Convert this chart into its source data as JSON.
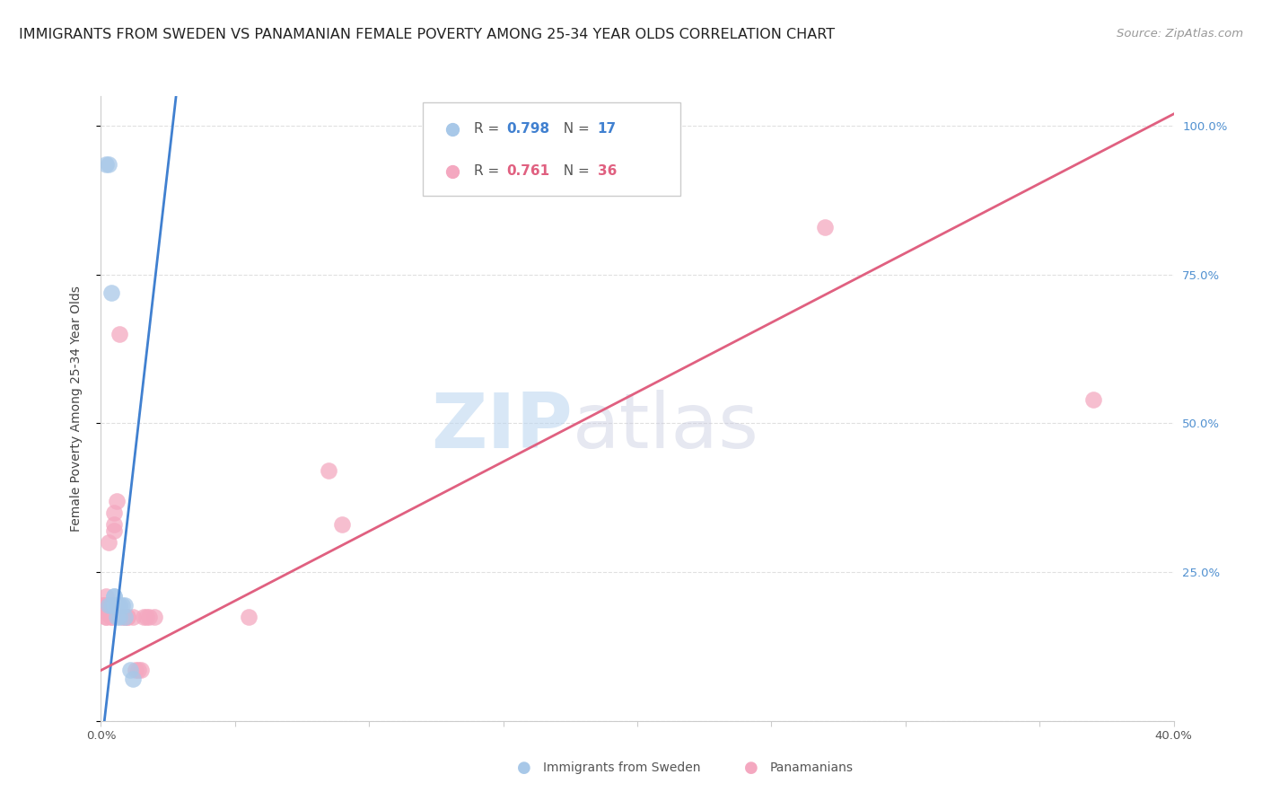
{
  "title": "IMMIGRANTS FROM SWEDEN VS PANAMANIAN FEMALE POVERTY AMONG 25-34 YEAR OLDS CORRELATION CHART",
  "source": "Source: ZipAtlas.com",
  "ylabel": "Female Poverty Among 25-34 Year Olds",
  "watermark_zip": "ZIP",
  "watermark_atlas": "atlas",
  "xmin": 0.0,
  "xmax": 0.4,
  "ymin": 0.0,
  "ymax": 1.05,
  "xticks": [
    0.0,
    0.05,
    0.1,
    0.15,
    0.2,
    0.25,
    0.3,
    0.35,
    0.4
  ],
  "xtick_labels": [
    "0.0%",
    "",
    "",
    "",
    "",
    "",
    "",
    "",
    "40.0%"
  ],
  "yticks": [
    0.0,
    0.25,
    0.5,
    0.75,
    1.0
  ],
  "ytick_labels": [
    "",
    "25.0%",
    "50.0%",
    "75.0%",
    "100.0%"
  ],
  "legend_R_blue": "0.798",
  "legend_N_blue": "17",
  "legend_R_pink": "0.761",
  "legend_N_pink": "36",
  "blue_color": "#a8c8e8",
  "pink_color": "#f4a8c0",
  "blue_line_color": "#4080d0",
  "pink_line_color": "#e06080",
  "blue_scatter": [
    [
      0.002,
      0.935
    ],
    [
      0.003,
      0.935
    ],
    [
      0.004,
      0.72
    ],
    [
      0.003,
      0.195
    ],
    [
      0.004,
      0.195
    ],
    [
      0.005,
      0.21
    ],
    [
      0.005,
      0.21
    ],
    [
      0.005,
      0.195
    ],
    [
      0.006,
      0.195
    ],
    [
      0.006,
      0.175
    ],
    [
      0.007,
      0.175
    ],
    [
      0.007,
      0.195
    ],
    [
      0.008,
      0.195
    ],
    [
      0.009,
      0.175
    ],
    [
      0.009,
      0.195
    ],
    [
      0.011,
      0.085
    ],
    [
      0.012,
      0.07
    ]
  ],
  "pink_scatter": [
    [
      0.001,
      0.195
    ],
    [
      0.001,
      0.195
    ],
    [
      0.002,
      0.21
    ],
    [
      0.002,
      0.175
    ],
    [
      0.002,
      0.195
    ],
    [
      0.002,
      0.175
    ],
    [
      0.002,
      0.195
    ],
    [
      0.003,
      0.18
    ],
    [
      0.003,
      0.195
    ],
    [
      0.003,
      0.195
    ],
    [
      0.003,
      0.3
    ],
    [
      0.004,
      0.195
    ],
    [
      0.004,
      0.175
    ],
    [
      0.004,
      0.175
    ],
    [
      0.005,
      0.33
    ],
    [
      0.005,
      0.32
    ],
    [
      0.005,
      0.35
    ],
    [
      0.006,
      0.37
    ],
    [
      0.007,
      0.65
    ],
    [
      0.008,
      0.175
    ],
    [
      0.009,
      0.175
    ],
    [
      0.01,
      0.175
    ],
    [
      0.01,
      0.175
    ],
    [
      0.012,
      0.175
    ],
    [
      0.013,
      0.085
    ],
    [
      0.014,
      0.085
    ],
    [
      0.015,
      0.085
    ],
    [
      0.016,
      0.175
    ],
    [
      0.017,
      0.175
    ],
    [
      0.018,
      0.175
    ],
    [
      0.02,
      0.175
    ],
    [
      0.055,
      0.175
    ],
    [
      0.085,
      0.42
    ],
    [
      0.09,
      0.33
    ],
    [
      0.27,
      0.83
    ],
    [
      0.37,
      0.54
    ]
  ],
  "blue_line_x": [
    0.0,
    0.028
  ],
  "blue_line_y": [
    -0.05,
    1.05
  ],
  "pink_line_x": [
    0.0,
    0.4
  ],
  "pink_line_y": [
    0.085,
    1.02
  ],
  "background_color": "#ffffff",
  "grid_color": "#e0e0e0",
  "axis_color": "#cccccc",
  "right_axis_color": "#5090d0",
  "title_fontsize": 11.5,
  "source_fontsize": 9.5,
  "label_fontsize": 10,
  "tick_fontsize": 9.5,
  "legend_fontsize": 11
}
